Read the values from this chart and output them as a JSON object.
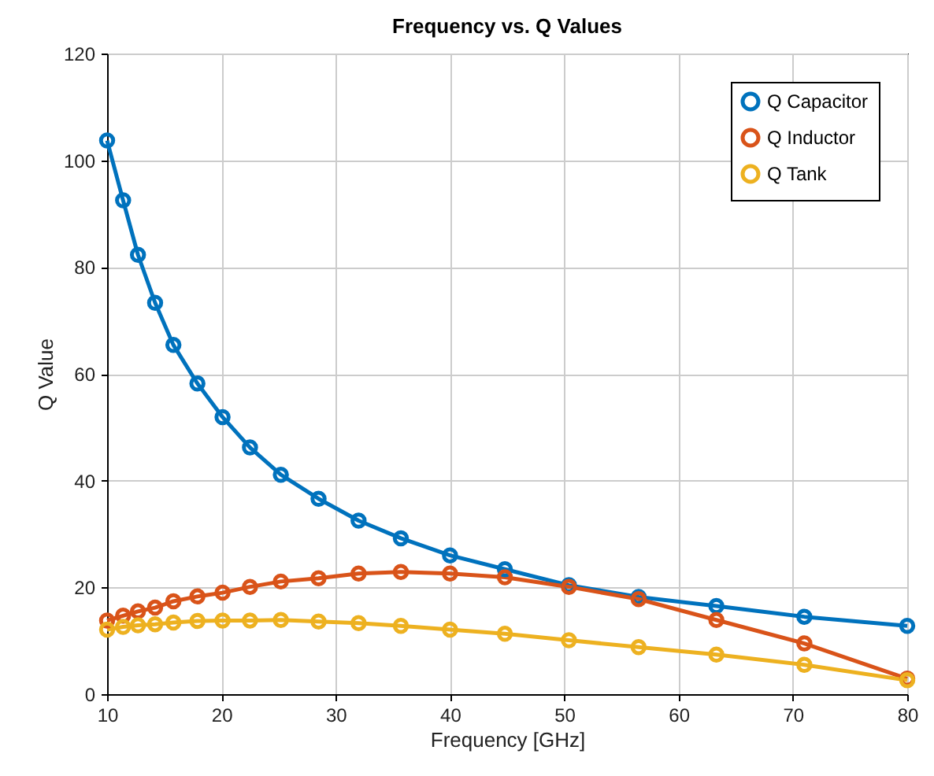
{
  "chart_data": {
    "type": "line",
    "title": "Frequency vs. Q Values",
    "xlabel": "Frequency [GHz]",
    "ylabel": "Q Value",
    "x": [
      10,
      11.4,
      12.7,
      14.2,
      15.8,
      17.9,
      20.1,
      22.5,
      25.2,
      28.5,
      32,
      35.7,
      40,
      44.8,
      50.4,
      56.5,
      63.3,
      71,
      80
    ],
    "series": [
      {
        "name": "Q Capacitor",
        "color": "#0072bd",
        "values": [
          103.7,
          92.5,
          82.3,
          73.3,
          65.4,
          58.2,
          51.9,
          46.2,
          41.1,
          36.6,
          32.5,
          29.2,
          26.0,
          23.4,
          20.4,
          18.2,
          16.5,
          14.5,
          12.8
        ]
      },
      {
        "name": "Q Inductor",
        "color": "#d95319",
        "values": [
          13.8,
          14.7,
          15.5,
          16.2,
          17.4,
          18.3,
          19.0,
          20.1,
          21.1,
          21.7,
          22.6,
          22.9,
          22.6,
          21.9,
          20.1,
          17.8,
          13.9,
          9.5,
          2.9
        ]
      },
      {
        "name": "Q Tank",
        "color": "#edb120",
        "values": [
          12.1,
          12.6,
          12.9,
          13.1,
          13.4,
          13.7,
          13.8,
          13.8,
          13.9,
          13.6,
          13.3,
          12.8,
          12.1,
          11.3,
          10.1,
          8.8,
          7.4,
          5.5,
          2.6
        ]
      }
    ],
    "xlim": [
      10,
      80
    ],
    "xticks": [
      10,
      20,
      30,
      40,
      50,
      60,
      70,
      80
    ],
    "ylim": [
      0,
      120
    ],
    "yticks": [
      0,
      20,
      40,
      60,
      80,
      100,
      120
    ],
    "grid": true,
    "legend": "top right",
    "marker": "circle",
    "line_style": "solid"
  }
}
